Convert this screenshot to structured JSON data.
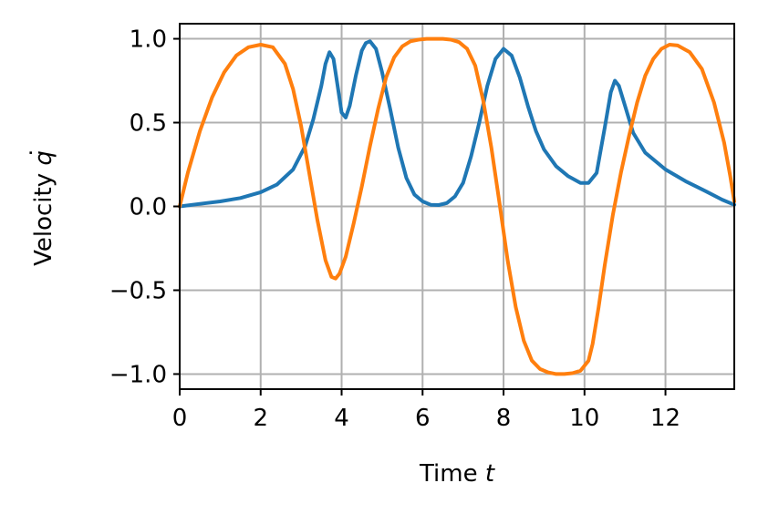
{
  "chart_data": {
    "type": "line",
    "title": "",
    "xlabel": "Time t",
    "xlabel_parts": {
      "text": "Time ",
      "symbol": "t"
    },
    "ylabel": "Velocity q̇",
    "ylabel_parts": {
      "text": "Velocity ",
      "symbol": "q",
      "accent": "˙"
    },
    "xlim": [
      0,
      13.7
    ],
    "ylim": [
      -1.09,
      1.09
    ],
    "xticks": [
      0,
      2,
      4,
      6,
      8,
      10,
      12
    ],
    "xtick_labels": [
      "0",
      "2",
      "4",
      "6",
      "8",
      "10",
      "12"
    ],
    "yticks": [
      -1.0,
      -0.5,
      0.0,
      0.5,
      1.0
    ],
    "ytick_labels": [
      "−1.0",
      "−0.5",
      "0.0",
      "0.5",
      "1.0"
    ],
    "grid": true,
    "legend": "none",
    "series": [
      {
        "color": "#1f77b4",
        "x": [
          0,
          0.5,
          1.0,
          1.5,
          2.0,
          2.4,
          2.8,
          3.1,
          3.3,
          3.5,
          3.6,
          3.7,
          3.8,
          3.9,
          4.0,
          4.1,
          4.2,
          4.35,
          4.5,
          4.6,
          4.7,
          4.85,
          5.0,
          5.2,
          5.4,
          5.6,
          5.8,
          6.0,
          6.2,
          6.4,
          6.6,
          6.8,
          7.0,
          7.2,
          7.4,
          7.6,
          7.8,
          8.0,
          8.2,
          8.4,
          8.6,
          8.8,
          9.0,
          9.3,
          9.6,
          9.9,
          10.1,
          10.3,
          10.5,
          10.65,
          10.75,
          10.85,
          11.0,
          11.2,
          11.5,
          12.0,
          12.5,
          13.0,
          13.4,
          13.7
        ],
        "y": [
          0.0,
          0.015,
          0.03,
          0.05,
          0.085,
          0.13,
          0.22,
          0.36,
          0.52,
          0.72,
          0.85,
          0.92,
          0.88,
          0.72,
          0.56,
          0.53,
          0.6,
          0.78,
          0.93,
          0.975,
          0.985,
          0.94,
          0.8,
          0.58,
          0.35,
          0.17,
          0.07,
          0.03,
          0.01,
          0.008,
          0.02,
          0.06,
          0.14,
          0.3,
          0.5,
          0.72,
          0.88,
          0.94,
          0.9,
          0.77,
          0.6,
          0.45,
          0.34,
          0.24,
          0.18,
          0.14,
          0.14,
          0.2,
          0.47,
          0.68,
          0.75,
          0.72,
          0.6,
          0.44,
          0.32,
          0.22,
          0.15,
          0.09,
          0.04,
          0.01
        ]
      },
      {
        "color": "#ff7f0e",
        "x": [
          0,
          0.2,
          0.5,
          0.8,
          1.1,
          1.4,
          1.7,
          2.0,
          2.3,
          2.6,
          2.8,
          3.0,
          3.2,
          3.4,
          3.6,
          3.75,
          3.85,
          3.95,
          4.1,
          4.3,
          4.5,
          4.7,
          4.9,
          5.1,
          5.3,
          5.5,
          5.7,
          5.9,
          6.1,
          6.3,
          6.5,
          6.7,
          6.9,
          7.1,
          7.3,
          7.5,
          7.7,
          7.9,
          8.1,
          8.3,
          8.5,
          8.7,
          8.9,
          9.1,
          9.3,
          9.5,
          9.7,
          9.9,
          10.1,
          10.2,
          10.35,
          10.5,
          10.7,
          10.9,
          11.1,
          11.3,
          11.5,
          11.7,
          11.9,
          12.1,
          12.3,
          12.6,
          12.9,
          13.2,
          13.45,
          13.6,
          13.7
        ],
        "y": [
          0.0,
          0.2,
          0.45,
          0.65,
          0.8,
          0.9,
          0.95,
          0.965,
          0.95,
          0.85,
          0.7,
          0.48,
          0.2,
          -0.08,
          -0.32,
          -0.42,
          -0.43,
          -0.4,
          -0.3,
          -0.1,
          0.12,
          0.36,
          0.58,
          0.77,
          0.89,
          0.955,
          0.985,
          0.995,
          1.0,
          1.0,
          1.0,
          0.995,
          0.98,
          0.94,
          0.84,
          0.63,
          0.35,
          0.02,
          -0.32,
          -0.6,
          -0.8,
          -0.92,
          -0.97,
          -0.99,
          -1.0,
          -1.0,
          -0.995,
          -0.98,
          -0.92,
          -0.82,
          -0.6,
          -0.35,
          -0.05,
          0.2,
          0.42,
          0.62,
          0.78,
          0.88,
          0.94,
          0.965,
          0.96,
          0.92,
          0.82,
          0.62,
          0.38,
          0.18,
          0.03
        ]
      }
    ]
  }
}
